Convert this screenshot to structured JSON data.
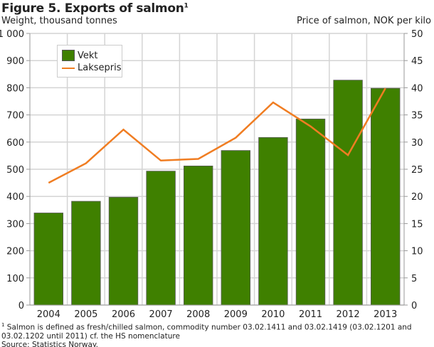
{
  "title": "Figure 5. Exports of salmon",
  "title_sup": "1",
  "chart_data": {
    "type": "bar+line",
    "categories": [
      "2004",
      "2005",
      "2006",
      "2007",
      "2008",
      "2009",
      "2010",
      "2011",
      "2012",
      "2013"
    ],
    "ylabel_left": "Weight, thousand tonnes",
    "ylabel_right": "Price of salmon, NOK per kilo",
    "ylim_left": [
      0,
      1000
    ],
    "ylim_right": [
      0,
      50
    ],
    "yticks_left": [
      "0",
      "100",
      "200",
      "300",
      "400",
      "500",
      "600",
      "700",
      "800",
      "900",
      "1 000"
    ],
    "yticks_right": [
      "0",
      "5",
      "10",
      "15",
      "20",
      "25",
      "30",
      "35",
      "40",
      "45",
      "50"
    ],
    "grid": true,
    "legend_placement": "top-left",
    "series": [
      {
        "name": "Vekt",
        "type": "bar",
        "axis": "left",
        "color": "#3f8000",
        "values": [
          339,
          382,
          397,
          493,
          512,
          569,
          617,
          685,
          828,
          798
        ]
      },
      {
        "name": "Laksepris",
        "type": "line",
        "axis": "right",
        "color": "#f07d22",
        "values": [
          22.5,
          26.1,
          32.3,
          26.6,
          26.9,
          30.8,
          37.3,
          32.9,
          27.6,
          39.9
        ]
      }
    ]
  },
  "footnote": {
    "sup": "1",
    "text": " Salmon is defined as fresh/chilled salmon, commodity number 03.02.1411 and 03.02.1419 (03.02.1201 and 03.02.1202 until 2011) cf. the HS nomenclature",
    "source": "Source: Statistics Norway."
  }
}
